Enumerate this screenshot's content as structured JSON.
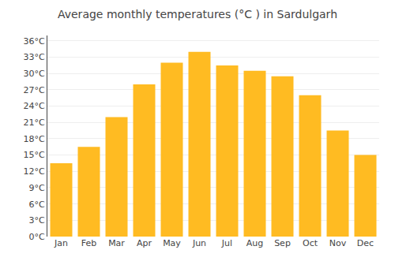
{
  "chart_data": {
    "type": "bar",
    "title": "Average monthly temperatures (°C ) in Sardulgarh",
    "categories": [
      "Jan",
      "Feb",
      "Mar",
      "Apr",
      "May",
      "Jun",
      "Jul",
      "Aug",
      "Sep",
      "Oct",
      "Nov",
      "Dec"
    ],
    "values": [
      13.5,
      16.5,
      22.0,
      28.0,
      32.0,
      34.0,
      31.5,
      30.5,
      29.5,
      26.0,
      19.5,
      15.0
    ],
    "color": "#FFBB22",
    "ylim": [
      0,
      37
    ],
    "yticks": [
      {
        "value": 0,
        "label": "0°C"
      },
      {
        "value": 3,
        "label": "3°C"
      },
      {
        "value": 6,
        "label": "6°C"
      },
      {
        "value": 9,
        "label": "9°C"
      },
      {
        "value": 12,
        "label": "12°C"
      },
      {
        "value": 15,
        "label": "15°C"
      },
      {
        "value": 18,
        "label": "18°C"
      },
      {
        "value": 21,
        "label": "21°C"
      },
      {
        "value": 24,
        "label": "24°C"
      },
      {
        "value": 27,
        "label": "27°C"
      },
      {
        "value": 30,
        "label": "30°C"
      },
      {
        "value": 33,
        "label": "33°C"
      },
      {
        "value": 36,
        "label": "36°C"
      }
    ],
    "grid": true
  }
}
